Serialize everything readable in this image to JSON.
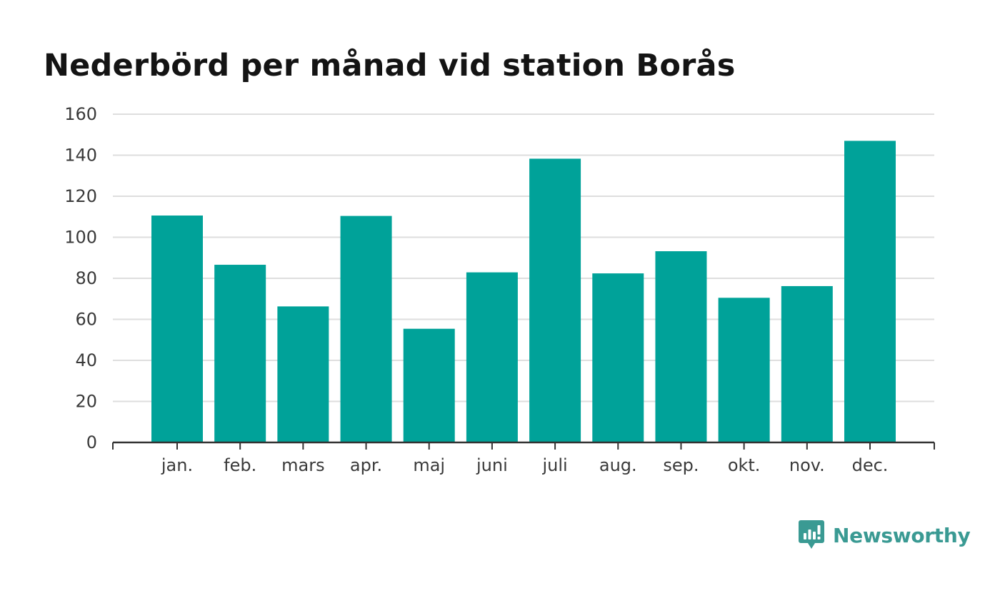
{
  "chart_data": {
    "type": "bar",
    "title": "Nederbörd per månad vid station Borås",
    "categories": [
      "jan.",
      "feb.",
      "mars",
      "apr.",
      "maj",
      "juni",
      "juli",
      "aug.",
      "sep.",
      "okt.",
      "nov.",
      "dec."
    ],
    "values": [
      110.6,
      86.6,
      66.3,
      110.4,
      55.4,
      82.9,
      138.3,
      82.4,
      93.2,
      70.5,
      76.2,
      147.0
    ],
    "xlabel": "",
    "ylabel": "",
    "ylim": [
      0,
      160
    ],
    "yticks": [
      0,
      20,
      40,
      60,
      80,
      100,
      120,
      140,
      160
    ],
    "grid": true,
    "bar_color": "#00a299"
  },
  "branding": {
    "logo_text": "Newsworthy",
    "logo_color": "#3a9a93",
    "icon": "bar-chart-speech-bubble-icon"
  }
}
